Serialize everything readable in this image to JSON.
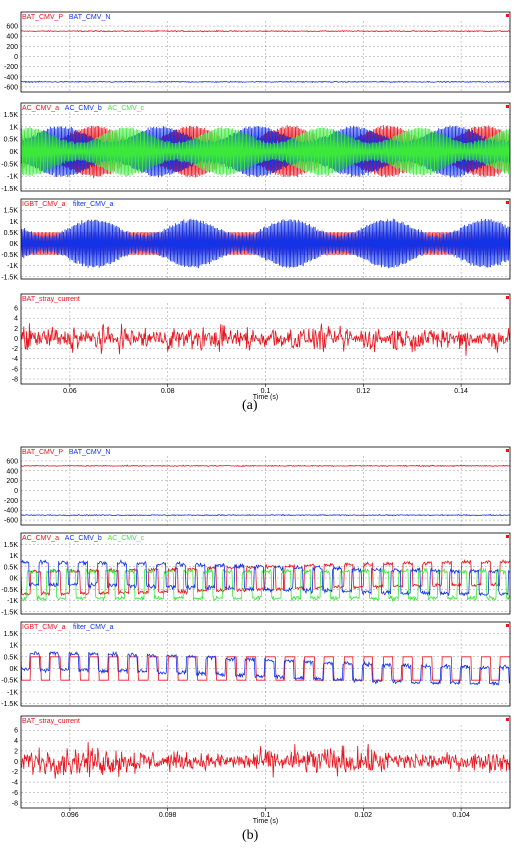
{
  "colors": {
    "red": "#e8141e",
    "blue": "#1432e6",
    "green": "#3ce83c",
    "axis": "#000000",
    "grid": "#9a9a9a",
    "frame": "#000000"
  },
  "figures": [
    {
      "caption": "(a)",
      "x_axis": {
        "label": "Time (s)",
        "ticks": [
          "0.06",
          "0.08",
          "0.1",
          "0.12",
          "0.14"
        ],
        "tick_values": [
          0.06,
          0.08,
          0.1,
          0.12,
          0.14
        ],
        "xlim": [
          0.05,
          0.15
        ]
      },
      "panels": [
        {
          "legend": [
            {
              "name": "BAT_CMV_P",
              "color": "red"
            },
            {
              "name": "BAT_CMV_N",
              "color": "blue"
            }
          ],
          "y_ticks": [
            "600",
            "400",
            "200",
            "0",
            "-200",
            "-400",
            "-600"
          ],
          "y_tick_values": [
            600,
            400,
            200,
            0,
            -200,
            -400,
            -600
          ],
          "ylim": [
            -700,
            700
          ]
        },
        {
          "legend": [
            {
              "name": "AC_CMV_a",
              "color": "red"
            },
            {
              "name": "AC_CMV_b",
              "color": "blue"
            },
            {
              "name": "AC_CMV_c",
              "color": "green"
            }
          ],
          "y_ticks": [
            "1.5K",
            "1K",
            "0.5K",
            "0K",
            "-0.5K",
            "-1K",
            "-1.5K"
          ],
          "y_tick_values": [
            1500,
            1000,
            500,
            0,
            -500,
            -1000,
            -1500
          ],
          "ylim": [
            -1600,
            1600
          ]
        },
        {
          "legend": [
            {
              "name": "IGBT_CMV_a",
              "color": "red"
            },
            {
              "name": "filter_CMV_a",
              "color": "blue"
            }
          ],
          "y_ticks": [
            "1.5K",
            "1K",
            "0.5K",
            "0K",
            "-0.5K",
            "-1K",
            "-1.5K"
          ],
          "y_tick_values": [
            1500,
            1000,
            500,
            0,
            -500,
            -1000,
            -1500
          ],
          "ylim": [
            -1600,
            1600
          ]
        },
        {
          "legend": [
            {
              "name": "BAT_stray_current",
              "color": "red"
            }
          ],
          "y_ticks": [
            "6",
            "4",
            "2",
            "0",
            "-2",
            "-4",
            "-6",
            "-8"
          ],
          "y_tick_values": [
            6,
            4,
            2,
            0,
            -2,
            -4,
            -6,
            -8
          ],
          "ylim": [
            -9,
            7
          ]
        }
      ]
    },
    {
      "caption": "(b)",
      "x_axis": {
        "label": "Time (s)",
        "ticks": [
          "0.096",
          "0.098",
          "0.1",
          "0.102",
          "0.104"
        ],
        "tick_values": [
          0.096,
          0.098,
          0.1,
          0.102,
          0.104
        ],
        "xlim": [
          0.095,
          0.105
        ]
      },
      "panels": [
        {
          "legend": [
            {
              "name": "BAT_CMV_P",
              "color": "red"
            },
            {
              "name": "BAT_CMV_N",
              "color": "blue"
            }
          ],
          "y_ticks": [
            "600",
            "400",
            "200",
            "0",
            "-200",
            "-400",
            "-600"
          ],
          "y_tick_values": [
            600,
            400,
            200,
            0,
            -200,
            -400,
            -600
          ],
          "ylim": [
            -700,
            700
          ]
        },
        {
          "legend": [
            {
              "name": "AC_CMV_a",
              "color": "red"
            },
            {
              "name": "AC_CMV_b",
              "color": "blue"
            },
            {
              "name": "AC_CMV_c",
              "color": "green"
            }
          ],
          "y_ticks": [
            "1.5K",
            "1K",
            "0.5K",
            "0K",
            "-0.5K",
            "-1K",
            "-1.5K"
          ],
          "y_tick_values": [
            1500,
            1000,
            500,
            0,
            -500,
            -1000,
            -1500
          ],
          "ylim": [
            -1600,
            1600
          ]
        },
        {
          "legend": [
            {
              "name": "IGBT_CMV_a",
              "color": "red"
            },
            {
              "name": "filter_CMV_a",
              "color": "blue"
            }
          ],
          "y_ticks": [
            "1.5K",
            "1K",
            "0.5K",
            "0K",
            "-0.5K",
            "-1K",
            "-1.5K"
          ],
          "y_tick_values": [
            1500,
            1000,
            500,
            0,
            -500,
            -1000,
            -1500
          ],
          "ylim": [
            -1600,
            1600
          ]
        },
        {
          "legend": [
            {
              "name": "BAT_stray_current",
              "color": "red"
            }
          ],
          "y_ticks": [
            "6",
            "4",
            "2",
            "0",
            "-2",
            "-4",
            "-6",
            "-8"
          ],
          "y_tick_values": [
            6,
            4,
            2,
            0,
            -2,
            -4,
            -6,
            -8
          ],
          "ylim": [
            -9,
            7
          ]
        }
      ]
    }
  ],
  "chart_data": [
    {
      "type": "line",
      "figure": "(a)",
      "series": [
        {
          "name": "BAT_CMV_P",
          "approx_value": 500
        },
        {
          "name": "BAT_CMV_N",
          "approx_value": -500
        }
      ],
      "xlabel": "Time (s)",
      "ylim": [
        -700,
        700
      ]
    },
    {
      "type": "line",
      "figure": "(a)",
      "series": [
        {
          "name": "AC_CMV_a",
          "approx_range": [
            -1200,
            1200
          ]
        },
        {
          "name": "AC_CMV_b",
          "approx_range": [
            -1200,
            1200
          ]
        },
        {
          "name": "AC_CMV_c",
          "approx_range": [
            -1000,
            1000
          ]
        }
      ],
      "xlabel": "Time (s)",
      "ylim": [
        -1600,
        1600
      ]
    },
    {
      "type": "line",
      "figure": "(a)",
      "series": [
        {
          "name": "IGBT_CMV_a",
          "approx_range": [
            -500,
            500
          ]
        },
        {
          "name": "filter_CMV_a",
          "approx_range": [
            -1200,
            1200
          ]
        }
      ],
      "xlabel": "Time (s)",
      "ylim": [
        -1600,
        1600
      ]
    },
    {
      "type": "line",
      "figure": "(a)",
      "series": [
        {
          "name": "BAT_stray_current",
          "approx_range": [
            -6,
            6
          ]
        }
      ],
      "xlabel": "Time (s)",
      "ylim": [
        -9,
        7
      ]
    },
    {
      "type": "line",
      "figure": "(b)",
      "series": [
        {
          "name": "BAT_CMV_P",
          "approx_value": 500
        },
        {
          "name": "BAT_CMV_N",
          "approx_value": -500
        }
      ],
      "xlabel": "Time (s)",
      "ylim": [
        -700,
        700
      ]
    },
    {
      "type": "line",
      "figure": "(b)",
      "series": [
        {
          "name": "AC_CMV_a",
          "approx_range": [
            -1000,
            1000
          ]
        },
        {
          "name": "AC_CMV_b",
          "approx_range": [
            -1100,
            1100
          ]
        },
        {
          "name": "AC_CMV_c",
          "approx_range": [
            -500,
            1400
          ]
        }
      ],
      "xlabel": "Time (s)",
      "ylim": [
        -1600,
        1600
      ]
    },
    {
      "type": "line",
      "figure": "(b)",
      "series": [
        {
          "name": "IGBT_CMV_a",
          "approx_range": [
            -500,
            500
          ]
        },
        {
          "name": "filter_CMV_a",
          "approx_range": [
            -1000,
            1000
          ]
        }
      ],
      "xlabel": "Time (s)",
      "ylim": [
        -1600,
        1600
      ]
    },
    {
      "type": "line",
      "figure": "(b)",
      "series": [
        {
          "name": "BAT_stray_current",
          "approx_range": [
            -6,
            6
          ]
        }
      ],
      "xlabel": "Time (s)",
      "ylim": [
        -9,
        7
      ]
    }
  ]
}
